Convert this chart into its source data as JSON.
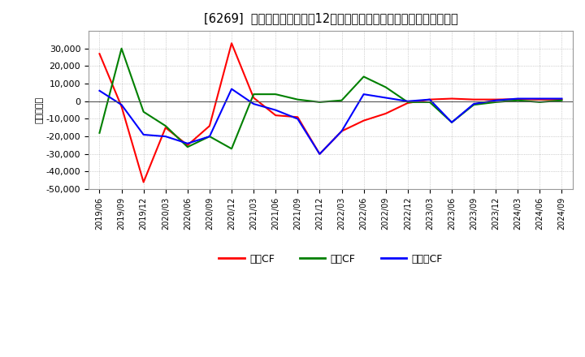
{
  "title": "[6269]  キャッシュフローの12か月移動合計の対前年同期増減額の推移",
  "ylabel": "（百万円）",
  "background_color": "#ffffff",
  "plot_bg_color": "#ffffff",
  "grid_color": "#aaaaaa",
  "ylim": [
    -50000,
    40000
  ],
  "yticks": [
    -50000,
    -40000,
    -30000,
    -20000,
    -10000,
    0,
    10000,
    20000,
    30000
  ],
  "x_labels": [
    "2019/06",
    "2019/09",
    "2019/12",
    "2020/03",
    "2020/06",
    "2020/09",
    "2020/12",
    "2021/03",
    "2021/06",
    "2021/09",
    "2021/12",
    "2022/03",
    "2022/06",
    "2022/09",
    "2022/12",
    "2023/03",
    "2023/06",
    "2023/09",
    "2023/12",
    "2024/03",
    "2024/06",
    "2024/09"
  ],
  "営業CF_values": [
    27000,
    -3000,
    -46000,
    -15000,
    -25000,
    -14000,
    33000,
    2000,
    -8000,
    -9000,
    -30000,
    -17000,
    -11000,
    -7000,
    -1000,
    1000,
    1500,
    1000,
    1000,
    1200,
    1000,
    1000
  ],
  "投資CF_values": [
    -18000,
    30000,
    -6000,
    -14000,
    -26000,
    -20000,
    -27000,
    4000,
    4000,
    1000,
    -500,
    500,
    14000,
    8000,
    -500,
    -500,
    -12000,
    -2000,
    -500,
    500,
    -500,
    500
  ],
  "フリーCF_values": [
    6000,
    -2000,
    -19000,
    -20000,
    -24000,
    -20000,
    7000,
    -1500,
    -5000,
    -10000,
    -30000,
    -17000,
    4000,
    2000,
    0,
    1000,
    -12000,
    -1500,
    500,
    1500,
    1500,
    1500
  ],
  "legend_labels": [
    "営業CF",
    "投資CF",
    "フリーCF"
  ],
  "legend_colors": [
    "#ff0000",
    "#008000",
    "#0000ff"
  ]
}
